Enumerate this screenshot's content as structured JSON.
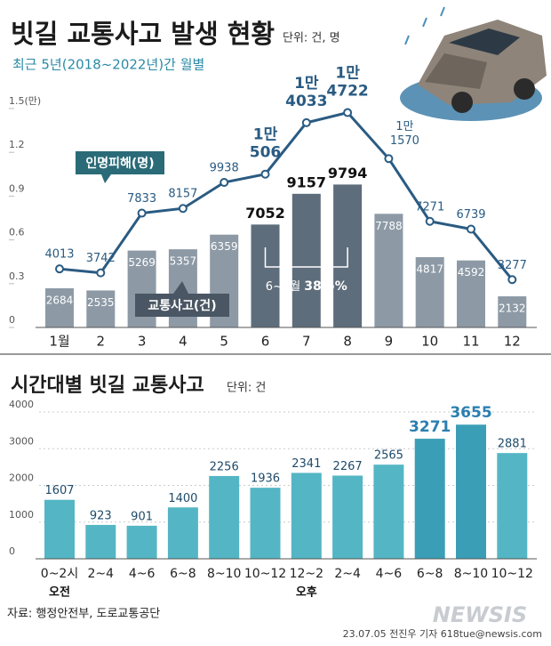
{
  "chart_data": [
    {
      "type": "bar_line",
      "title": "빗길 교통사고 발생 현황",
      "unit": "단위: 건, 명",
      "subtitle": "최근 5년(2018~2022년)간 월별",
      "categories": [
        "1월",
        "2",
        "3",
        "4",
        "5",
        "6",
        "7",
        "8",
        "9",
        "10",
        "11",
        "12"
      ],
      "ylim": [
        0,
        15000
      ],
      "yticks": [
        0,
        {
          "value": 3000,
          "label": "0.3"
        },
        {
          "value": 6000,
          "label": "0.6"
        },
        {
          "value": 9000,
          "label": "0.9"
        },
        {
          "value": 12000,
          "label": "1.2"
        },
        {
          "value": 15000,
          "label": "1.5(만)"
        }
      ],
      "series": [
        {
          "name": "교통사고(건)",
          "type": "bar",
          "colors": [
            "#8d9aa6",
            "#8d9aa6",
            "#8d9aa6",
            "#8d9aa6",
            "#8d9aa6",
            "#5e6d7b",
            "#5e6d7b",
            "#5e6d7b",
            "#8d9aa6",
            "#8d9aa6",
            "#8d9aa6",
            "#8d9aa6"
          ],
          "values": [
            2684,
            2535,
            5269,
            5357,
            6359,
            7052,
            9157,
            9794,
            7788,
            4817,
            4592,
            2132
          ]
        },
        {
          "name": "인명피해(명)",
          "type": "line",
          "color": "#2a5b82",
          "values": [
            4013,
            3742,
            7833,
            8157,
            9938,
            10506,
            14033,
            14722,
            11570,
            7271,
            6739,
            3277
          ],
          "value_labels": [
            "4013",
            "3742",
            "7833",
            "8157",
            "9938",
            [
              "1만",
              "506"
            ],
            [
              "1만",
              "4033"
            ],
            [
              "1만",
              "4722"
            ],
            [
              "1만",
              "1570"
            ],
            "7271",
            "6739",
            "3277"
          ]
        }
      ],
      "annotation": {
        "label": "6~8월",
        "value": "38.5%"
      }
    },
    {
      "type": "bar",
      "title": "시간대별 빗길 교통사고",
      "unit": "단위: 건",
      "categories": [
        "0~2시",
        "2~4",
        "4~6",
        "6~8",
        "8~10",
        "10~12",
        "12~2",
        "2~4",
        "4~6",
        "6~8",
        "8~10",
        "10~12"
      ],
      "am_label": "오전",
      "pm_label": "오후",
      "values": [
        1607,
        923,
        901,
        1400,
        2256,
        1936,
        2341,
        2267,
        2565,
        3271,
        3655,
        2881
      ],
      "colors": [
        "#54b6c4",
        "#54b6c4",
        "#54b6c4",
        "#54b6c4",
        "#54b6c4",
        "#54b6c4",
        "#54b6c4",
        "#54b6c4",
        "#54b6c4",
        "#3a9fb6",
        "#3a9fb6",
        "#54b6c4"
      ],
      "ylim": [
        0,
        4000
      ],
      "yticks": [
        0,
        1000,
        2000,
        3000,
        4000
      ],
      "grid": true
    }
  ],
  "source": "자료: 행정안전부, 도로교통공단",
  "credit": "23.07.05 전진우 기자 618tue@newsis.com",
  "watermark": "NEWSIS"
}
